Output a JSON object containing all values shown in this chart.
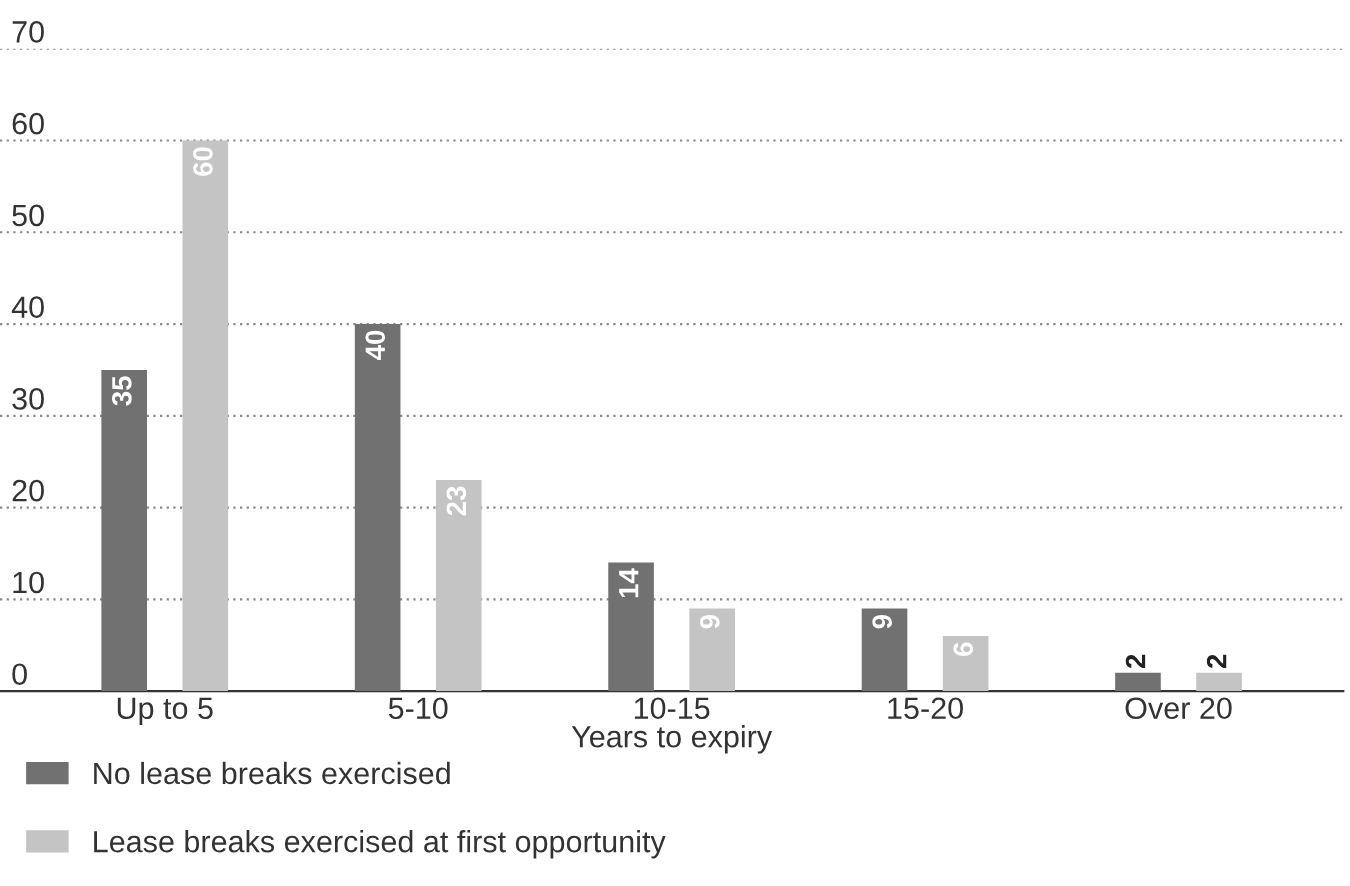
{
  "chart_data": {
    "type": "bar",
    "xlabel": "Years to expiry",
    "categories": [
      "Up to 5",
      "5-10",
      "10-15",
      "15-20",
      "Over 20"
    ],
    "series": [
      {
        "name": "No lease breaks exercised",
        "color": "#717171",
        "values": [
          35,
          40,
          14,
          9,
          2
        ]
      },
      {
        "name": "Lease breaks exercised at first opportunity",
        "color": "#c4c4c4",
        "values": [
          60,
          23,
          9,
          6,
          2
        ]
      }
    ],
    "ylim": [
      0,
      70
    ],
    "yticks": [
      0,
      10,
      20,
      30,
      40,
      50,
      60,
      70
    ],
    "grid": "y",
    "legend": "bottom",
    "data_labels": true
  }
}
